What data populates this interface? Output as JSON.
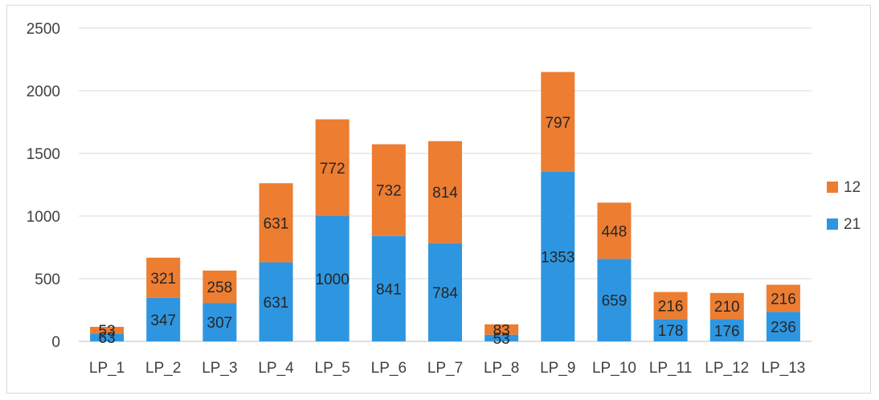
{
  "chart_data": {
    "type": "bar",
    "stacked": true,
    "categories": [
      "LP_1",
      "LP_2",
      "LP_3",
      "LP_4",
      "LP_5",
      "LP_6",
      "LP_7",
      "LP_8",
      "LP_9",
      "LP_10",
      "LP_11",
      "LP_12",
      "LP_13"
    ],
    "series": [
      {
        "name": "21",
        "color": "#2E96E0",
        "values": [
          63,
          347,
          307,
          631,
          1000,
          841,
          784,
          53,
          1353,
          659,
          178,
          176,
          236
        ]
      },
      {
        "name": "12",
        "color": "#ED7D31",
        "values": [
          53,
          321,
          258,
          631,
          772,
          732,
          814,
          83,
          797,
          448,
          216,
          210,
          216
        ]
      }
    ],
    "ylim": [
      0,
      2500
    ],
    "yticks": [
      0,
      500,
      1000,
      1500,
      2000,
      2500
    ],
    "grid": true,
    "legend_position": "right",
    "legend_order": [
      "12",
      "21"
    ],
    "title": "",
    "xlabel": "",
    "ylabel": ""
  }
}
